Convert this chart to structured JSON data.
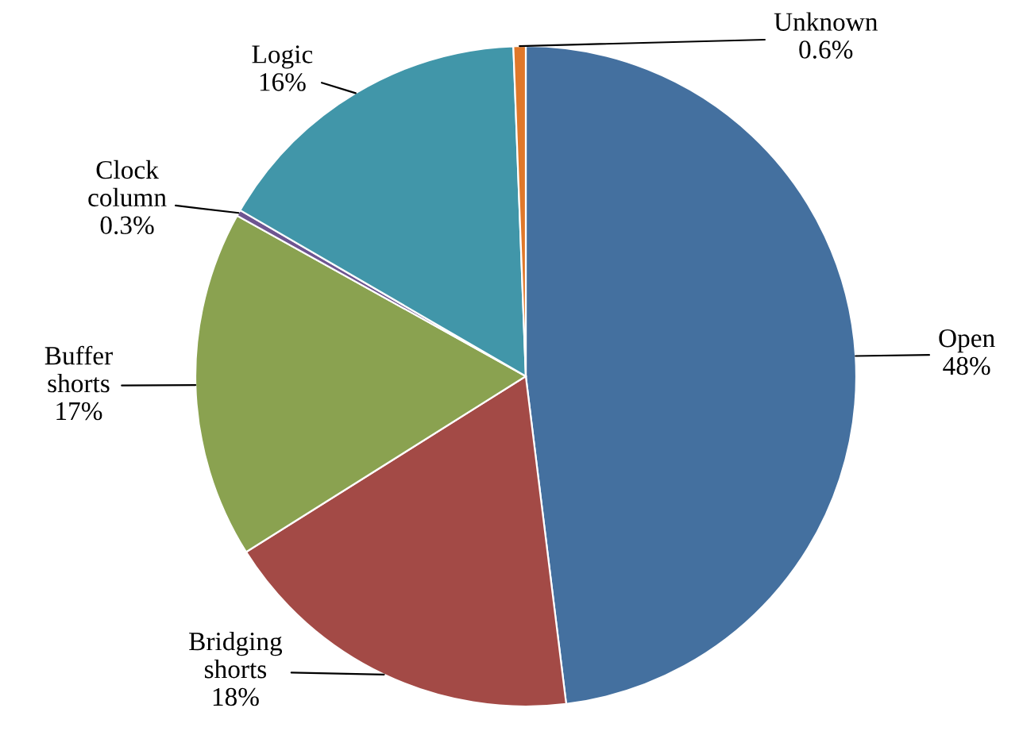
{
  "chart_data": {
    "type": "pie",
    "categories": [
      "Open",
      "Bridging shorts",
      "Buffer shorts",
      "Clock column",
      "Logic",
      "Unknown"
    ],
    "values": [
      48,
      18,
      17,
      0.3,
      16,
      0.6
    ],
    "value_labels": [
      "48%",
      "18%",
      "17%",
      "0.3%",
      "16%",
      "0.6%"
    ],
    "colors": [
      "#44709f",
      "#a34a46",
      "#8aa250",
      "#6e5591",
      "#4196a9",
      "#e0782a"
    ]
  }
}
